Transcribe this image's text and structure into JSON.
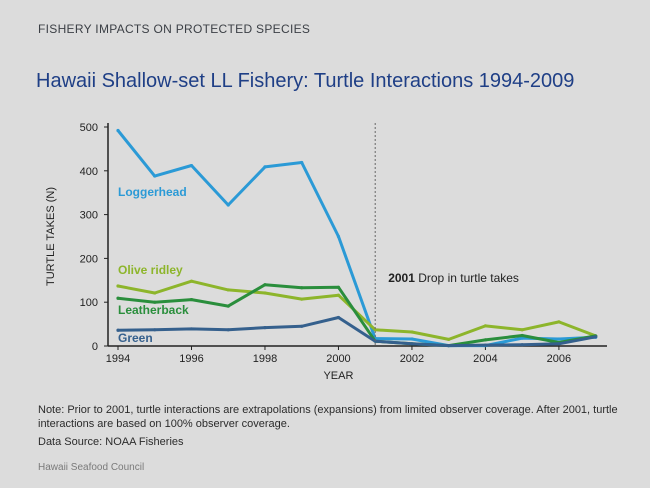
{
  "header": {
    "section": "FISHERY IMPACTS ON PROTECTED SPECIES",
    "title": "Hawaii Shallow-set LL Fishery: Turtle Interactions 1994-2009"
  },
  "note": "Note:  Prior to 2001, turtle interactions are extrapolations (expansions) from limited observer coverage. After 2001, turtle interactions are based on 100% observer coverage.",
  "source": "Data Source: NOAA Fisheries",
  "footer": "Hawaii Seafood Council",
  "chart_data": {
    "type": "line",
    "xlabel": "YEAR",
    "ylabel": "TURTLE TAKES (N)",
    "xlim": [
      1994,
      2007.2
    ],
    "ylim": [
      0,
      500
    ],
    "x_ticks": [
      1994,
      1996,
      1998,
      2000,
      2002,
      2004,
      2006
    ],
    "y_ticks": [
      0,
      100,
      200,
      300,
      400,
      500
    ],
    "grid": false,
    "x": [
      1994,
      1995,
      1996,
      1997,
      1998,
      1999,
      2000,
      2001,
      2002,
      2003,
      2004,
      2005,
      2006,
      2007
    ],
    "series": [
      {
        "name": "Loggerhead",
        "color": "#2b9ad6",
        "values": [
          492,
          388,
          412,
          322,
          409,
          419,
          250,
          17,
          16,
          1,
          1,
          18,
          16,
          20
        ]
      },
      {
        "name": "Olive ridley",
        "color": "#8db52b",
        "values": [
          137,
          121,
          148,
          128,
          121,
          107,
          116,
          37,
          32,
          15,
          46,
          37,
          55,
          23
        ]
      },
      {
        "name": "Leatherback",
        "color": "#2a8e3c",
        "values": [
          109,
          100,
          106,
          91,
          140,
          133,
          134,
          11,
          5,
          1,
          14,
          24,
          8,
          23
        ]
      },
      {
        "name": "Green",
        "color": "#35608d",
        "values": [
          36,
          37,
          39,
          37,
          42,
          45,
          65,
          11,
          5,
          1,
          2,
          3,
          5,
          21
        ]
      }
    ],
    "annotation": {
      "x": 2001,
      "bold": "2001",
      "text": " Drop in turtle takes"
    }
  }
}
